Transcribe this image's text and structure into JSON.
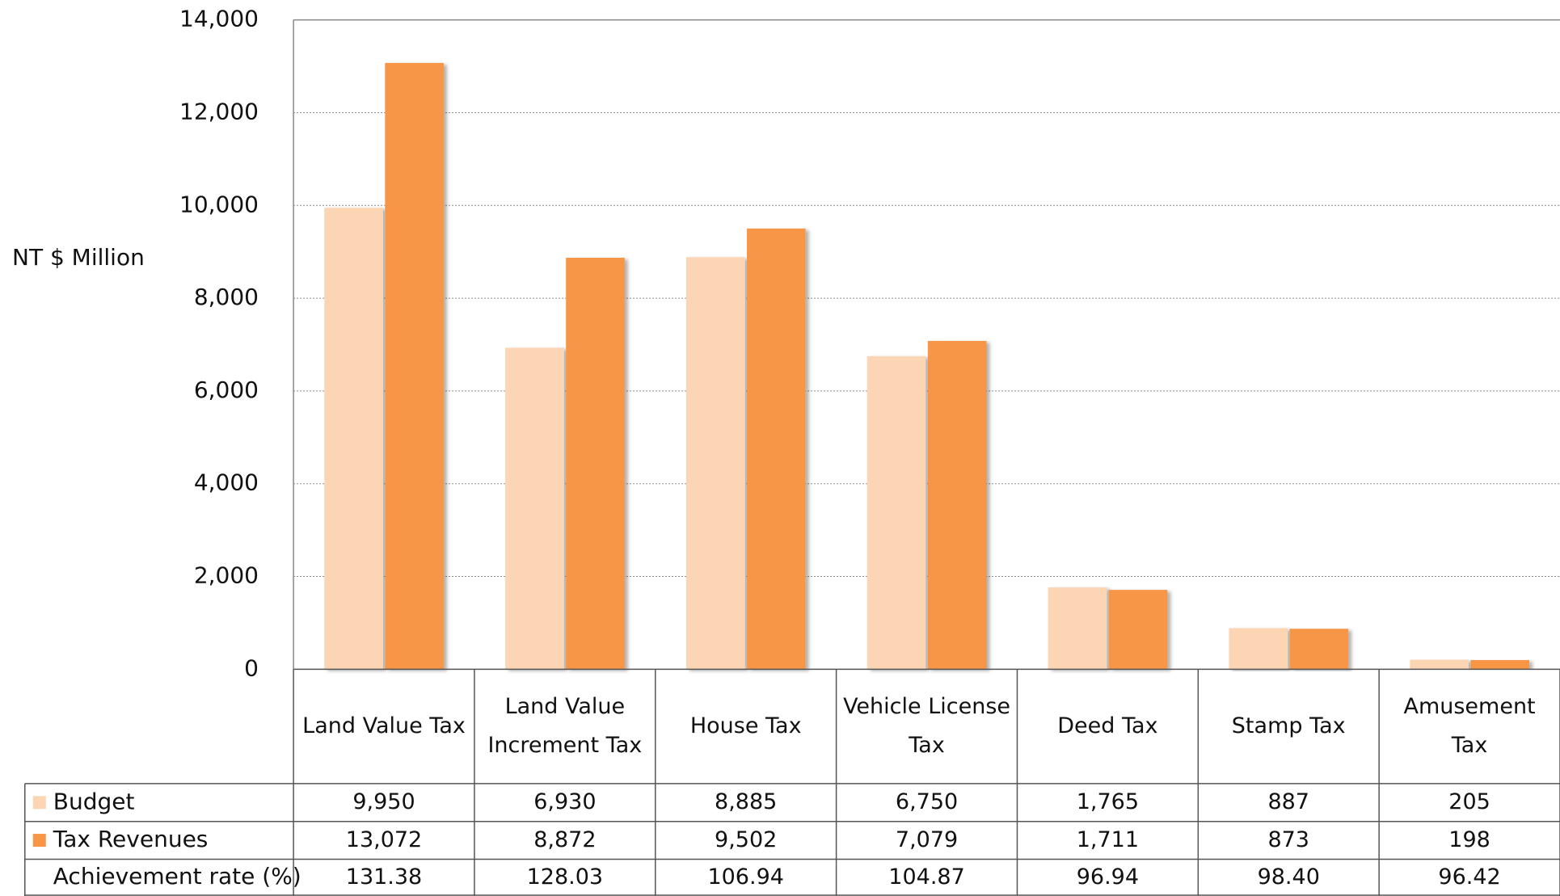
{
  "chart_data": {
    "type": "bar",
    "y_label": "NT $ Million",
    "categories": [
      "Land Value Tax",
      "Land Value Increment Tax",
      "House Tax",
      "Vehicle License Tax",
      "Deed Tax",
      "Stamp Tax",
      "Amusement Tax"
    ],
    "series": [
      {
        "name": "Budget",
        "color": "#fcd5b5",
        "values": [
          9950,
          6930,
          8885,
          6750,
          1765,
          887,
          205
        ],
        "value_labels": [
          "9,950",
          "6,930",
          "8,885",
          "6,750",
          "1,765",
          "887",
          "205"
        ]
      },
      {
        "name": "Tax Revenues",
        "color": "#f79646",
        "values": [
          13072,
          8872,
          9502,
          7079,
          1711,
          873,
          198
        ],
        "value_labels": [
          "13,072",
          "8,872",
          "9,502",
          "7,079",
          "1,711",
          "873",
          "198"
        ]
      }
    ],
    "table_rows": [
      {
        "name": "Achievement rate (%)",
        "values": [
          131.38,
          128.03,
          106.94,
          104.87,
          96.94,
          98.4,
          96.42
        ],
        "value_labels": [
          "131.38",
          "128.03",
          "106.94",
          "104.87",
          "96.94",
          "98.40",
          "96.42"
        ]
      }
    ],
    "ylim": [
      0,
      14000
    ],
    "yticks": [
      0,
      {
        "value": 2000,
        "label": "2,000"
      },
      {
        "value": 4000,
        "label": "4,000"
      },
      {
        "value": 6000,
        "label": "6,000"
      },
      {
        "value": 8000,
        "label": "8,000"
      },
      {
        "value": 10000,
        "label": "10,000"
      },
      {
        "value": 12000,
        "label": "12,000"
      },
      {
        "value": 14000,
        "label": "14,000"
      }
    ],
    "grid": true
  }
}
